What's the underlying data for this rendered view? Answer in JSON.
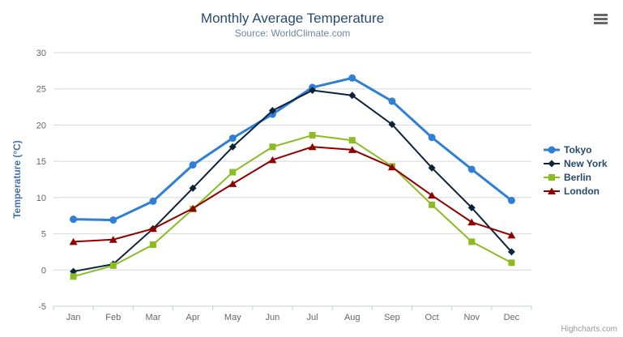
{
  "chart": {
    "title": "Monthly Average Temperature",
    "subtitle": "Source: WorldClimate.com",
    "credits": "Highcharts.com"
  },
  "chart_data": {
    "type": "line",
    "title": "Monthly Average Temperature",
    "subtitle": "Source: WorldClimate.com",
    "xlabel": "",
    "ylabel": "Temperature (°C)",
    "ylim": [
      -5,
      30
    ],
    "yticks": [
      -5,
      0,
      5,
      10,
      15,
      20,
      25,
      30
    ],
    "grid": true,
    "legend_position": "right",
    "categories": [
      "Jan",
      "Feb",
      "Mar",
      "Apr",
      "May",
      "Jun",
      "Jul",
      "Aug",
      "Sep",
      "Oct",
      "Nov",
      "Dec"
    ],
    "series": [
      {
        "id": "tokyo",
        "name": "Tokyo",
        "color": "#2f7ed8",
        "marker": "circle",
        "line_width": 3,
        "values": [
          7.0,
          6.9,
          9.5,
          14.5,
          18.2,
          21.5,
          25.2,
          26.5,
          23.3,
          18.3,
          13.9,
          9.6
        ]
      },
      {
        "id": "new-york",
        "name": "New York",
        "color": "#0d233a",
        "marker": "diamond",
        "line_width": 2,
        "values": [
          -0.2,
          0.8,
          5.7,
          11.3,
          17.0,
          22.0,
          24.8,
          24.1,
          20.1,
          14.1,
          8.6,
          2.5
        ]
      },
      {
        "id": "berlin",
        "name": "Berlin",
        "color": "#8bbc21",
        "marker": "square",
        "line_width": 2,
        "values": [
          -0.9,
          0.6,
          3.5,
          8.4,
          13.5,
          17.0,
          18.6,
          17.9,
          14.3,
          9.0,
          3.9,
          1.0
        ]
      },
      {
        "id": "london",
        "name": "London",
        "color": "#910000",
        "marker": "triangle",
        "line_width": 2,
        "values": [
          3.9,
          4.2,
          5.7,
          8.5,
          11.9,
          15.2,
          17.0,
          16.6,
          14.2,
          10.3,
          6.6,
          4.8
        ]
      }
    ],
    "colors": {
      "grid": "#d8d8d8",
      "axis_line": "#c0d0e0",
      "tick_labels": "#666666",
      "axis_title": "#4572a7",
      "title": "#274b6d",
      "subtitle": "#6d869f",
      "legend_text": "#274b6d",
      "credits": "#999999"
    }
  }
}
